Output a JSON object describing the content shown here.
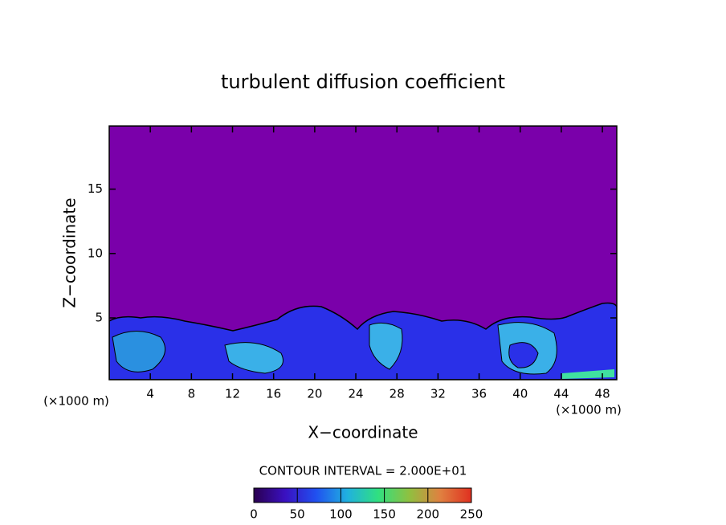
{
  "chart_data": {
    "type": "contour",
    "title": "turbulent diffusion coefficient",
    "xlabel": "X−coordinate",
    "ylabel": "Z−coordinate",
    "xunit": "(×1000 m)",
    "yunit": "(×1000 m)",
    "xlim": [
      0,
      49.4
    ],
    "ylim": [
      0.2,
      19.9
    ],
    "xticks": [
      4,
      8,
      12,
      16,
      20,
      24,
      28,
      32,
      36,
      40,
      44,
      48
    ],
    "yticks": [
      5,
      10,
      15
    ],
    "contour_interval": "CONTOUR INTERVAL = 2.000E+01",
    "colorbar": {
      "lim": [
        0,
        250
      ],
      "ticks": [
        0,
        50,
        100,
        150,
        200,
        250
      ],
      "colors": [
        "#2a0050",
        "#3a10c0",
        "#2050f0",
        "#20b0e0",
        "#30e080",
        "#90c040",
        "#e08040",
        "#e03020"
      ]
    }
  }
}
